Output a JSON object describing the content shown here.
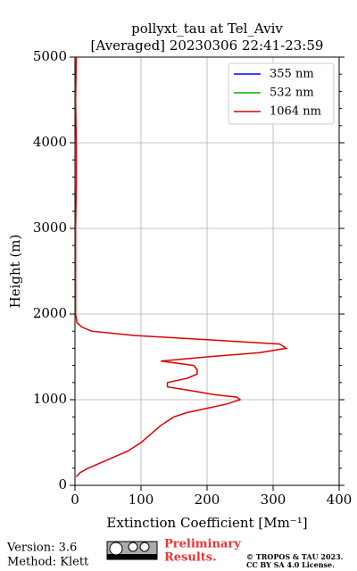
{
  "chart_data": {
    "type": "line",
    "title": "pollyxt_tau at Tel_Aviv",
    "subtitle": "[Averaged] 20230306 22:41-23:59",
    "xlabel": "Extinction Coefficient [Mm⁻¹]",
    "ylabel": "Height (m)",
    "y": [
      100,
      150,
      200,
      300,
      400,
      500,
      600,
      700,
      800,
      850,
      900,
      950,
      1000,
      1030,
      1060,
      1100,
      1150,
      1200,
      1250,
      1300,
      1350,
      1400,
      1450,
      1500,
      1550,
      1600,
      1650,
      1700,
      1750,
      1800,
      1850,
      1900,
      2000,
      2500,
      3000,
      3500,
      4000,
      4500,
      5000
    ],
    "series": [
      {
        "name": "355 nm",
        "color": "#0000ff",
        "values": [
          null,
          null,
          null,
          null,
          null,
          null,
          null,
          null,
          null,
          null,
          null,
          null,
          null,
          null,
          null,
          null,
          null,
          null,
          null,
          null,
          null,
          null,
          null,
          null,
          null,
          null,
          null,
          null,
          null,
          null,
          null,
          null,
          null,
          null,
          null,
          null,
          null,
          null,
          null
        ]
      },
      {
        "name": "532 nm",
        "color": "#00b000",
        "values": [
          null,
          null,
          null,
          null,
          null,
          null,
          null,
          null,
          null,
          null,
          null,
          null,
          null,
          null,
          null,
          null,
          null,
          null,
          null,
          null,
          null,
          null,
          null,
          null,
          null,
          null,
          null,
          null,
          null,
          null,
          null,
          null,
          null,
          null,
          null,
          null,
          null,
          null,
          null
        ]
      },
      {
        "name": "1064 nm",
        "color": "#dd0000",
        "values": [
          2,
          8,
          20,
          50,
          80,
          100,
          115,
          130,
          150,
          170,
          200,
          230,
          250,
          245,
          210,
          180,
          140,
          140,
          170,
          185,
          185,
          180,
          130,
          200,
          280,
          320,
          310,
          200,
          90,
          25,
          10,
          3,
          1,
          1,
          1,
          2,
          2,
          1,
          2
        ]
      }
    ],
    "xlim": [
      0,
      400
    ],
    "xticks": [
      0,
      100,
      200,
      300,
      400
    ],
    "ylim": [
      0,
      5000
    ],
    "yticks": [
      0,
      1000,
      2000,
      3000,
      4000,
      5000
    ],
    "grid": true,
    "legend": "upper right"
  },
  "footer": {
    "version": "Version: 3.6",
    "method": "Method: Klett",
    "preliminary": [
      "Preliminary",
      "Results."
    ],
    "license": [
      "© TROPOS & TAU 2023.",
      "CC BY SA 4.0 License."
    ]
  }
}
